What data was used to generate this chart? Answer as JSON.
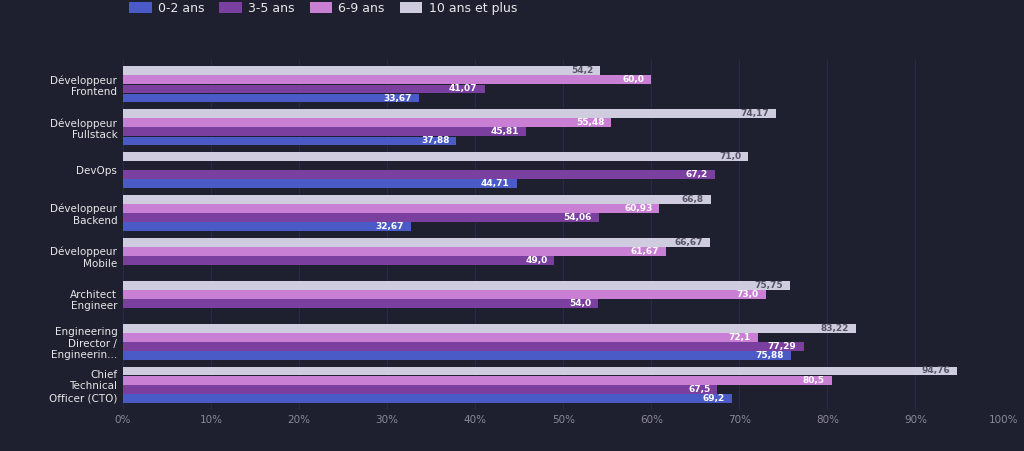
{
  "categories": [
    "Développeur\nFrontend",
    "Développeur\nFullstack",
    "DevOps",
    "Développeur\nBackend",
    "Développeur\nMobile",
    "Architect\nEngineer",
    "Engineering\nDirector /\nEngineerin...",
    "Chief\nTechnical\nOfficer (CTO)"
  ],
  "series": [
    {
      "label": "0-2 ans",
      "color": "#4a5bc7",
      "values": [
        33.67,
        37.88,
        44.71,
        32.67,
        0,
        0,
        75.88,
        69.2
      ]
    },
    {
      "label": "3-5 ans",
      "color": "#7b3fa0",
      "values": [
        41.07,
        45.81,
        67.2,
        54.06,
        49.0,
        54.0,
        77.29,
        67.5
      ]
    },
    {
      "label": "6-9 ans",
      "color": "#c97fd4",
      "values": [
        60.0,
        55.48,
        0,
        60.93,
        61.67,
        73.0,
        72.1,
        80.5
      ]
    },
    {
      "label": "10 ans et plus",
      "color": "#d0cce0",
      "values": [
        54.2,
        74.17,
        71.0,
        66.8,
        66.67,
        75.75,
        83.22,
        94.76
      ]
    }
  ],
  "background_color": "#1e2030",
  "text_color": "#e8e8e8",
  "axis_text_color": "#888899",
  "xlim": [
    0,
    100
  ],
  "legend_colors": [
    "#4a5bc7",
    "#7b3fa0",
    "#c97fd4",
    "#d0cce0"
  ],
  "legend_labels": [
    "0-2 ans",
    "3-5 ans",
    "6-9 ans",
    "10 ans et plus"
  ],
  "grid_color": "#2e3050",
  "figsize": [
    10.24,
    4.51
  ],
  "dpi": 100
}
